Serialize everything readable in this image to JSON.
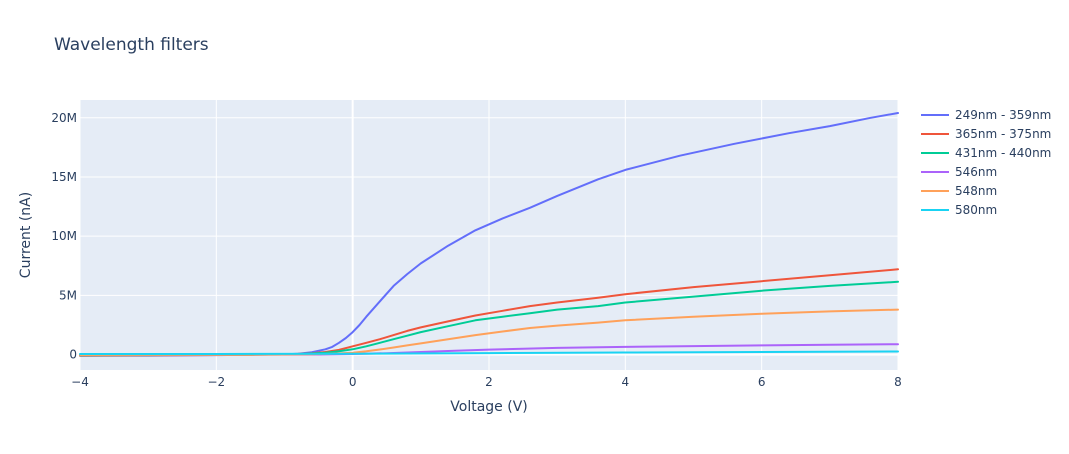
{
  "chart_data": {
    "type": "line",
    "title": "Wavelength filters",
    "xlabel": "Voltage (V)",
    "ylabel": "Current (nA)",
    "xlim": [
      -4,
      8
    ],
    "ylim": [
      -1300000,
      21500000
    ],
    "x_ticks": [
      -4,
      -2,
      0,
      2,
      4,
      6,
      8
    ],
    "x_tick_labels": [
      "−4",
      "−2",
      "0",
      "2",
      "4",
      "6",
      "8"
    ],
    "y_ticks": [
      0,
      5000000,
      10000000,
      15000000,
      20000000
    ],
    "y_tick_labels": [
      "0",
      "5M",
      "10M",
      "15M",
      "20M"
    ],
    "grid": true,
    "legend_position": "right",
    "background": "#E5ECF6",
    "series": [
      {
        "name": "249nm - 359nm",
        "color": "#636EFA",
        "x": [
          -4,
          -3,
          -2,
          -1.5,
          -1,
          -0.8,
          -0.6,
          -0.4,
          -0.3,
          -0.2,
          -0.1,
          0,
          0.1,
          0.2,
          0.4,
          0.6,
          0.8,
          1,
          1.4,
          1.8,
          2.2,
          2.6,
          3,
          3.6,
          4,
          4.8,
          5.6,
          6.4,
          7,
          7.6,
          8
        ],
        "y": [
          -100000,
          -80000,
          -40000,
          -10000,
          20000,
          80000,
          200000,
          450000,
          650000,
          1000000,
          1400000,
          1900000,
          2500000,
          3200000,
          4500000,
          5800000,
          6800000,
          7700000,
          9200000,
          10500000,
          11500000,
          12400000,
          13400000,
          14800000,
          15600000,
          16800000,
          17800000,
          18700000,
          19300000,
          20000000,
          20400000
        ]
      },
      {
        "name": "365nm - 375nm",
        "color": "#EF553B",
        "x": [
          -4,
          -3,
          -2,
          -1.5,
          -1,
          -0.8,
          -0.6,
          -0.4,
          -0.2,
          0,
          0.2,
          0.4,
          0.6,
          0.8,
          1,
          1.4,
          1.8,
          2.2,
          2.6,
          3,
          3.6,
          4,
          5,
          6,
          7,
          8
        ],
        "y": [
          -80000,
          -60000,
          -30000,
          -10000,
          20000,
          60000,
          120000,
          220000,
          400000,
          700000,
          1000000,
          1300000,
          1650000,
          2000000,
          2300000,
          2800000,
          3300000,
          3700000,
          4100000,
          4400000,
          4800000,
          5100000,
          5700000,
          6200000,
          6700000,
          7200000
        ]
      },
      {
        "name": "431nm - 440nm",
        "color": "#00CC96",
        "x": [
          -4,
          -3,
          -2,
          -1.5,
          -1,
          -0.8,
          -0.6,
          -0.4,
          -0.2,
          0,
          0.2,
          0.4,
          0.6,
          0.8,
          1,
          1.4,
          1.8,
          2.2,
          2.6,
          3,
          3.6,
          4,
          5,
          6,
          7,
          8
        ],
        "y": [
          -60000,
          -40000,
          -20000,
          -5000,
          10000,
          40000,
          90000,
          160000,
          280000,
          450000,
          700000,
          1000000,
          1300000,
          1600000,
          1900000,
          2400000,
          2900000,
          3200000,
          3500000,
          3800000,
          4100000,
          4400000,
          4900000,
          5400000,
          5800000,
          6150000
        ]
      },
      {
        "name": "546nm",
        "color": "#AB63FA",
        "x": [
          -4,
          -3,
          -2,
          -1,
          -0.5,
          0,
          0.5,
          1,
          1.5,
          2,
          2.5,
          3,
          4,
          5,
          6,
          7,
          8
        ],
        "y": [
          -10000,
          -8000,
          -5000,
          0,
          10000,
          50000,
          120000,
          220000,
          320000,
          420000,
          500000,
          570000,
          650000,
          720000,
          780000,
          830000,
          880000
        ]
      },
      {
        "name": "548nm",
        "color": "#FFA15A",
        "x": [
          -4,
          -3,
          -2,
          -1.5,
          -1,
          -0.8,
          -0.6,
          -0.4,
          -0.2,
          0,
          0.2,
          0.4,
          0.6,
          0.8,
          1,
          1.4,
          1.8,
          2.2,
          2.6,
          3,
          3.6,
          4,
          5,
          6,
          7,
          8
        ],
        "y": [
          -30000,
          -25000,
          -15000,
          -5000,
          5000,
          15000,
          35000,
          60000,
          100000,
          160000,
          280000,
          430000,
          600000,
          780000,
          950000,
          1300000,
          1650000,
          1950000,
          2250000,
          2450000,
          2700000,
          2900000,
          3200000,
          3450000,
          3650000,
          3800000
        ]
      },
      {
        "name": "580nm",
        "color": "#19D3F3",
        "x": [
          -4,
          -2,
          0,
          2,
          4,
          6,
          8
        ],
        "y": [
          50000,
          50000,
          80000,
          130000,
          180000,
          220000,
          260000
        ]
      }
    ]
  }
}
